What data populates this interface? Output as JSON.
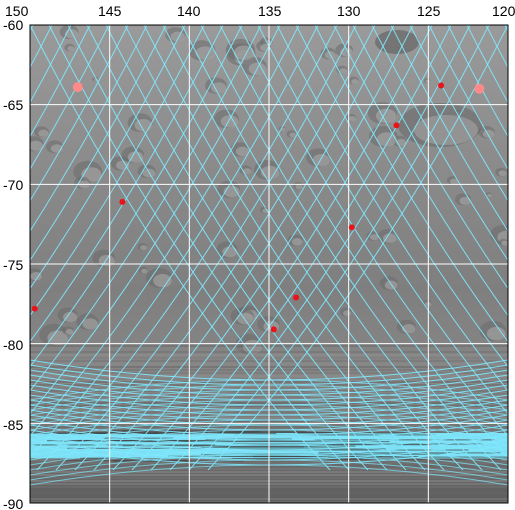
{
  "map": {
    "x_axis": {
      "label_values": [
        "150",
        "145",
        "140",
        "135",
        "130",
        "125",
        "120"
      ],
      "min": 150,
      "max": 120,
      "direction": "decreasing to the right"
    },
    "y_axis": {
      "label_values": [
        "-60",
        "-65",
        "-70",
        "-75",
        "-80",
        "-85",
        "-90"
      ],
      "min": -60,
      "max": -90
    },
    "grid": true,
    "grid_color": "#ffffff",
    "track_color": "#7fe9ff",
    "marker_color": "#e8141a",
    "marker_highlight_color": "#ff8a8a",
    "points": [
      {
        "lon": 147.0,
        "lat": -63.9,
        "style": "highlight"
      },
      {
        "lon": 124.2,
        "lat": -63.8,
        "style": "normal"
      },
      {
        "lon": 121.8,
        "lat": -64.0,
        "style": "highlight"
      },
      {
        "lon": 127.0,
        "lat": -66.3,
        "style": "normal"
      },
      {
        "lon": 144.2,
        "lat": -71.1,
        "style": "normal"
      },
      {
        "lon": 129.8,
        "lat": -72.7,
        "style": "normal"
      },
      {
        "lon": 133.3,
        "lat": -77.1,
        "style": "normal"
      },
      {
        "lon": 134.7,
        "lat": -79.1,
        "style": "normal"
      },
      {
        "lon": 149.7,
        "lat": -77.8,
        "style": "normal"
      }
    ]
  }
}
